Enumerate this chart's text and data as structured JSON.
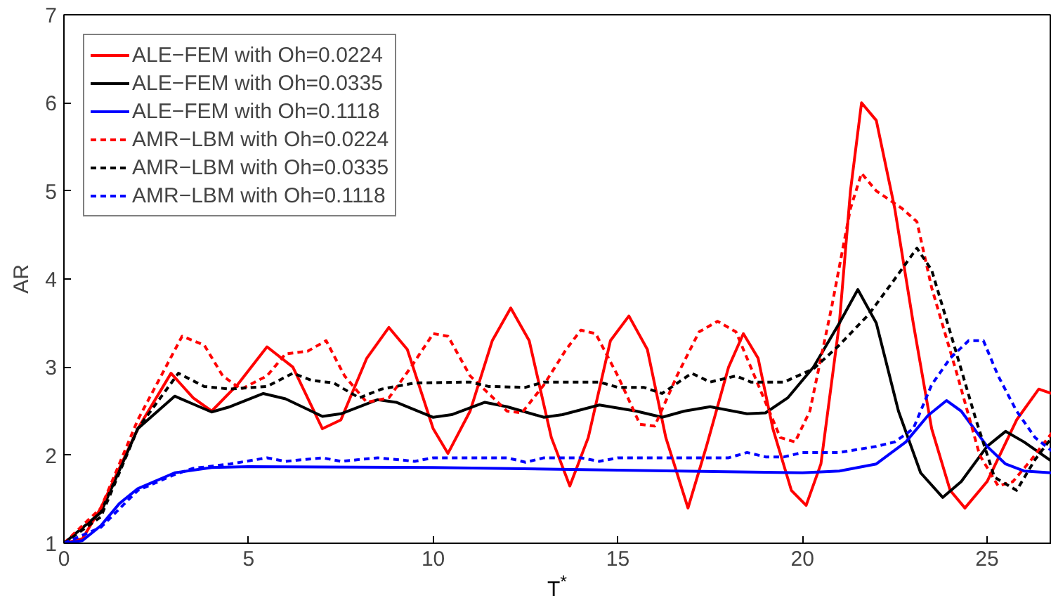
{
  "chart_data": {
    "type": "line",
    "xlabel": "T$^{*}$",
    "ylabel": "AR",
    "xlim": [
      0,
      26.75
    ],
    "ylim": [
      1,
      7
    ],
    "xticks": [
      0,
      5,
      10,
      15,
      20,
      25
    ],
    "yticks": [
      1,
      2,
      3,
      4,
      5,
      6,
      7
    ],
    "grid": false,
    "legend": "top left",
    "marker": "none",
    "series": [
      {
        "name": "ALE−FEM with Oh=0.0224",
        "color": "#ff0000",
        "line_style": "solid",
        "x": [
          0,
          0.5,
          1,
          2,
          2.9,
          3.5,
          4,
          4.7,
          5.5,
          6.2,
          7,
          7.5,
          8.2,
          8.8,
          9.3,
          10,
          10.4,
          11,
          11.6,
          12.1,
          12.6,
          13.2,
          13.7,
          14.2,
          14.8,
          15.3,
          15.8,
          16.3,
          16.9,
          17.4,
          18,
          18.4,
          18.8,
          19.2,
          19.7,
          20.1,
          20.5,
          21,
          21.3,
          21.6,
          22,
          22.5,
          23,
          23.5,
          24,
          24.4,
          25,
          25.8,
          26.4,
          26.75
        ],
        "values": [
          1,
          1.05,
          1.4,
          2.3,
          2.93,
          2.65,
          2.5,
          2.8,
          3.23,
          3.0,
          2.3,
          2.4,
          3.1,
          3.45,
          3.2,
          2.3,
          2.02,
          2.5,
          3.3,
          3.67,
          3.3,
          2.2,
          1.65,
          2.2,
          3.3,
          3.58,
          3.2,
          2.2,
          1.4,
          2.1,
          3.0,
          3.38,
          3.1,
          2.3,
          1.6,
          1.43,
          1.9,
          3.5,
          5.0,
          6.0,
          5.8,
          4.8,
          3.5,
          2.3,
          1.6,
          1.4,
          1.7,
          2.4,
          2.75,
          2.7
        ]
      },
      {
        "name": "ALE−FEM with Oh=0.0335",
        "color": "#000000",
        "line_style": "solid",
        "x": [
          0,
          1,
          2,
          3,
          3.5,
          4,
          4.5,
          5.4,
          6,
          7,
          7.5,
          8.5,
          9,
          10,
          10.5,
          11.4,
          12,
          13,
          13.5,
          14.5,
          15.5,
          16.2,
          16.8,
          17.5,
          18.5,
          19,
          19.6,
          20.3,
          21,
          21.5,
          22,
          22.6,
          23.2,
          23.8,
          24.3,
          25,
          25.5,
          26,
          26.75
        ],
        "values": [
          1,
          1.35,
          2.3,
          2.67,
          2.58,
          2.49,
          2.55,
          2.7,
          2.64,
          2.44,
          2.47,
          2.63,
          2.6,
          2.43,
          2.46,
          2.6,
          2.55,
          2.43,
          2.46,
          2.57,
          2.5,
          2.43,
          2.5,
          2.55,
          2.47,
          2.48,
          2.65,
          3.0,
          3.5,
          3.88,
          3.5,
          2.5,
          1.8,
          1.52,
          1.7,
          2.1,
          2.27,
          2.15,
          1.93
        ]
      },
      {
        "name": "ALE−FEM with Oh=0.1118",
        "color": "#0000ff",
        "line_style": "solid",
        "x": [
          0,
          0.5,
          1,
          1.5,
          2,
          3,
          4,
          5,
          10,
          15,
          20,
          21,
          22,
          22.8,
          23.4,
          23.9,
          24.3,
          25,
          25.5,
          26,
          26.75
        ],
        "values": [
          1,
          1.03,
          1.2,
          1.45,
          1.62,
          1.8,
          1.86,
          1.87,
          1.86,
          1.83,
          1.8,
          1.82,
          1.9,
          2.15,
          2.45,
          2.62,
          2.5,
          2.1,
          1.9,
          1.82,
          1.8
        ]
      },
      {
        "name": "AMR−LBM with Oh=0.0224",
        "color": "#ff0000",
        "line_style": "dashed",
        "x": [
          0,
          1,
          2,
          3.2,
          3.8,
          4.3,
          4.8,
          5.5,
          6,
          6.6,
          7.1,
          7.6,
          8.2,
          8.8,
          9.4,
          10,
          10.4,
          11,
          12,
          12.4,
          13,
          13.6,
          14,
          14.4,
          15,
          15.6,
          16,
          16.6,
          17.2,
          17.7,
          18.2,
          18.8,
          19.4,
          19.8,
          20.2,
          20.8,
          21.3,
          21.6,
          22,
          22.7,
          23.1,
          23.5,
          24.2,
          24.8,
          25.3,
          25.7,
          26.2,
          26.75
        ],
        "values": [
          1,
          1.4,
          2.4,
          3.35,
          3.25,
          2.9,
          2.75,
          2.9,
          3.15,
          3.18,
          3.3,
          2.9,
          2.6,
          2.65,
          3.0,
          3.38,
          3.35,
          2.9,
          2.5,
          2.48,
          2.8,
          3.2,
          3.42,
          3.38,
          2.9,
          2.35,
          2.33,
          2.9,
          3.4,
          3.52,
          3.4,
          2.8,
          2.2,
          2.15,
          2.5,
          3.7,
          4.8,
          5.2,
          5.0,
          4.8,
          4.65,
          3.9,
          2.9,
          2.0,
          1.65,
          1.7,
          1.95,
          2.25
        ]
      },
      {
        "name": "AMR−LBM with Oh=0.0335",
        "color": "#000000",
        "line_style": "dashed",
        "x": [
          0,
          1,
          2,
          3.1,
          3.8,
          4.5,
          5.5,
          6.2,
          6.7,
          7.3,
          8,
          8.6,
          9.5,
          11,
          11.5,
          12.5,
          13,
          14.5,
          15,
          15.7,
          16.2,
          17,
          17.5,
          18.2,
          18.6,
          19.5,
          20.3,
          21,
          21.8,
          22.5,
          23.1,
          23.5,
          24,
          24.7,
          25.2,
          25.8,
          26.3,
          26.75
        ],
        "values": [
          1,
          1.3,
          2.3,
          2.93,
          2.78,
          2.75,
          2.78,
          2.93,
          2.85,
          2.82,
          2.65,
          2.75,
          2.82,
          2.83,
          2.78,
          2.77,
          2.83,
          2.83,
          2.77,
          2.77,
          2.7,
          2.93,
          2.83,
          2.9,
          2.83,
          2.83,
          2.98,
          3.25,
          3.6,
          4.0,
          4.35,
          4.1,
          3.4,
          2.4,
          1.75,
          1.6,
          1.95,
          2.2
        ]
      },
      {
        "name": "AMR−LBM with Oh=0.1118",
        "color": "#0000ff",
        "line_style": "dashed",
        "x": [
          0,
          1,
          2,
          3,
          3.5,
          4.5,
          5.5,
          6,
          7,
          7.5,
          8.5,
          9.5,
          10,
          12,
          12.5,
          13,
          14,
          14.5,
          15,
          18,
          18.5,
          19,
          19.5,
          20,
          21,
          22,
          22.5,
          23,
          23.5,
          24,
          24.5,
          24.9,
          25.3,
          25.8,
          26.3,
          26.75
        ],
        "values": [
          1,
          1.18,
          1.6,
          1.78,
          1.85,
          1.9,
          1.97,
          1.93,
          1.97,
          1.93,
          1.97,
          1.93,
          1.97,
          1.97,
          1.92,
          1.97,
          1.97,
          1.93,
          1.97,
          1.97,
          2.03,
          1.98,
          1.98,
          2.03,
          2.03,
          2.1,
          2.15,
          2.3,
          2.8,
          3.1,
          3.3,
          3.3,
          2.9,
          2.5,
          2.2,
          2.05
        ]
      }
    ]
  }
}
